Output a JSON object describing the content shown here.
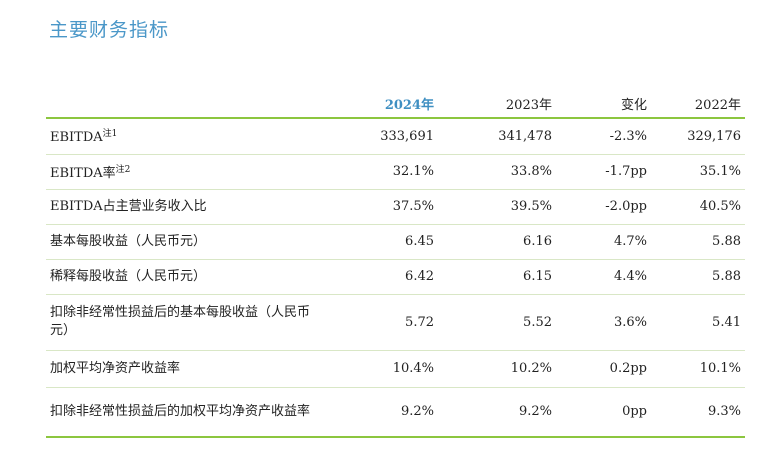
{
  "page": {
    "title": "主要财务指标"
  },
  "table": {
    "headers": [
      "",
      "2024年",
      "2023年",
      "变化",
      "2022年"
    ],
    "rows": [
      {
        "label": "EBITDA",
        "note": "注1",
        "values": [
          "333,691",
          "341,478",
          "-2.3%",
          "329,176"
        ]
      },
      {
        "label": "EBITDA率",
        "note": "注2",
        "values": [
          "32.1%",
          "33.8%",
          "-1.7pp",
          "35.1%"
        ]
      },
      {
        "label": "EBITDA占主营业务收入比",
        "note": "",
        "values": [
          "37.5%",
          "39.5%",
          "-2.0pp",
          "40.5%"
        ]
      },
      {
        "label": "基本每股收益（人民币元）",
        "note": "",
        "values": [
          "6.45",
          "6.16",
          "4.7%",
          "5.88"
        ]
      },
      {
        "label": "稀释每股收益（人民币元）",
        "note": "",
        "values": [
          "6.42",
          "6.15",
          "4.4%",
          "5.88"
        ]
      },
      {
        "label": "扣除非经常性损益后的基本每股收益（人民币元）",
        "note": "",
        "values": [
          "5.72",
          "5.52",
          "3.6%",
          "5.41"
        ]
      },
      {
        "label": "加权平均净资产收益率",
        "note": "",
        "values": [
          "10.4%",
          "10.2%",
          "0.2pp",
          "10.1%"
        ]
      },
      {
        "label": "扣除非经常性损益后的加权平均净资产收益率",
        "note": "",
        "values": [
          "9.2%",
          "9.2%",
          "0pp",
          "9.3%"
        ]
      }
    ]
  },
  "colors": {
    "title": "#4a97c8",
    "highlight_year": "#3f8fc2",
    "rule": "#8cc63f",
    "row_divider": "#d9e7c6"
  }
}
